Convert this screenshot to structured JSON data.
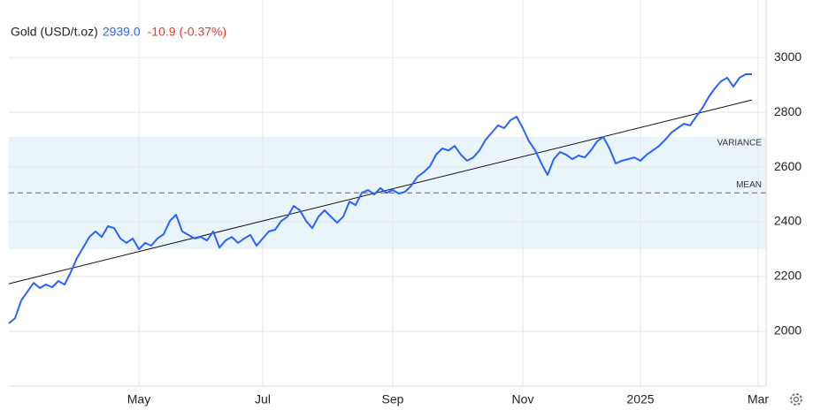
{
  "header": {
    "name": "Gold (USD/t.oz)",
    "price": "2939.0",
    "change": "-10.9 (-0.37%)"
  },
  "chart_data": {
    "type": "line",
    "xlim": [
      0,
      122
    ],
    "xticks": [
      {
        "value": 21,
        "label": "May"
      },
      {
        "value": 41,
        "label": "Jul"
      },
      {
        "value": 62,
        "label": "Sep"
      },
      {
        "value": 83,
        "label": "Nov"
      },
      {
        "value": 102,
        "label": "2025"
      },
      {
        "value": 121,
        "label": "Mar"
      }
    ],
    "ylim": [
      1800,
      3210
    ],
    "yticks": [
      2000,
      2200,
      2400,
      2600,
      2800,
      3000
    ],
    "grid": true,
    "series": [
      {
        "name": "Gold (USD/t.oz)",
        "color": "#2962ff",
        "values": [
          2029,
          2048,
          2113,
          2145,
          2177,
          2158,
          2171,
          2161,
          2184,
          2171,
          2216,
          2268,
          2306,
          2345,
          2365,
          2345,
          2384,
          2377,
          2339,
          2323,
          2339,
          2300,
          2323,
          2313,
          2339,
          2355,
          2403,
          2426,
          2365,
          2352,
          2339,
          2345,
          2332,
          2365,
          2306,
          2332,
          2345,
          2323,
          2339,
          2352,
          2313,
          2339,
          2365,
          2371,
          2403,
          2419,
          2458,
          2442,
          2403,
          2377,
          2419,
          2442,
          2419,
          2397,
          2419,
          2474,
          2461,
          2506,
          2516,
          2500,
          2523,
          2506,
          2516,
          2503,
          2510,
          2532,
          2565,
          2581,
          2603,
          2645,
          2668,
          2661,
          2677,
          2645,
          2623,
          2635,
          2661,
          2700,
          2726,
          2752,
          2742,
          2771,
          2784,
          2742,
          2694,
          2661,
          2613,
          2571,
          2629,
          2655,
          2645,
          2629,
          2642,
          2635,
          2661,
          2694,
          2710,
          2668,
          2613,
          2623,
          2629,
          2635,
          2623,
          2645,
          2661,
          2677,
          2700,
          2726,
          2742,
          2758,
          2752,
          2784,
          2816,
          2855,
          2887,
          2913,
          2926,
          2894,
          2926,
          2939,
          2939
        ]
      }
    ],
    "trend": {
      "x": [
        0,
        120
      ],
      "values": [
        2174,
        2845
      ]
    },
    "mean": {
      "label": "MEAN",
      "value": 2506
    },
    "variance": {
      "label": "VARIANCE",
      "range": [
        2300,
        2710
      ]
    }
  }
}
